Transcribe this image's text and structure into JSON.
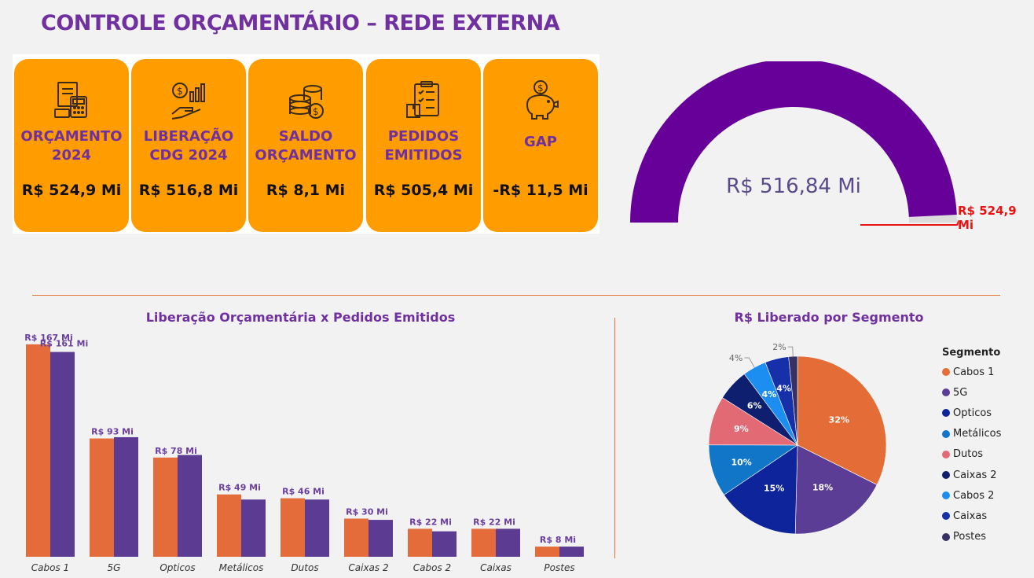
{
  "title": "CONTROLE ORÇAMENTÁRIO – REDE EXTERNA",
  "kpis": [
    {
      "label": "ORÇAMENTO\n2024",
      "value": "R$ 524,9 Mi",
      "icon": "budget-document-icon"
    },
    {
      "label": "LIBERAÇÃO\nCDG 2024",
      "value": "R$ 516,8 Mi",
      "icon": "money-hand-chart-icon"
    },
    {
      "label": "SALDO\nORÇAMENTO",
      "value": "R$ 8,1 Mi",
      "icon": "coin-stack-icon"
    },
    {
      "label": "PEDIDOS\nEMITIDOS",
      "value": "R$ 505,4 Mi",
      "icon": "clipboard-checklist-icon"
    },
    {
      "label": "GAP",
      "value": "-R$ 11,5 Mi",
      "icon": "piggy-bank-icon"
    }
  ],
  "gauge": {
    "value_label": "R$ 516,84 Mi",
    "target_label": "R$ 524,9 Mi",
    "value": 516.84,
    "target": 524.9,
    "fill_color": "#660099",
    "target_color": "#e81414"
  },
  "chart_data": [
    {
      "type": "bar",
      "title": "Liberação Orçamentária x Pedidos Emitidos",
      "categories": [
        "Cabos 1",
        "5G",
        "Opticos",
        "Metálicos",
        "Dutos",
        "Caixas 2",
        "Cabos 2",
        "Caixas",
        "Postes"
      ],
      "series": [
        {
          "values": [
            167,
            93,
            78,
            49,
            46,
            30,
            22,
            22,
            8
          ],
          "color": "#e46c3a"
        },
        {
          "values": [
            161,
            94,
            80,
            45,
            45,
            29,
            20,
            22,
            8
          ],
          "color": "#5c3b93"
        }
      ],
      "data_labels": [
        "R$ 167 Mi",
        "R$ 93 Mi",
        "R$ 78 Mi",
        "R$ 49 Mi",
        "R$ 46 Mi",
        "R$ 30 Mi",
        "R$ 22 Mi",
        "R$ 22 Mi",
        "R$ 8 Mi"
      ],
      "extra_label": "R$ 161 Mi",
      "ylim": [
        0,
        170
      ],
      "xlabel": "",
      "ylabel": ""
    },
    {
      "type": "pie",
      "title": "R$ Liberado por Segmento",
      "legend_title": "Segmento",
      "legend_position": "right",
      "slices": [
        {
          "label": "Cabos 1",
          "value": 32.3,
          "pct_label": "32%",
          "color": "#e36c37"
        },
        {
          "label": "5G",
          "value": 18.0,
          "pct_label": "18%",
          "color": "#5b3d95"
        },
        {
          "label": "Opticos",
          "value": 15.1,
          "pct_label": "15%",
          "color": "#0e249a"
        },
        {
          "label": "Metálicos",
          "value": 9.5,
          "pct_label": "10%",
          "color": "#1175c8"
        },
        {
          "label": "Dutos",
          "value": 8.9,
          "pct_label": "9%",
          "color": "#e26a74"
        },
        {
          "label": "Caixas 2",
          "value": 5.8,
          "pct_label": "6%",
          "color": "#0d1f6e"
        },
        {
          "label": "Cabos 2",
          "value": 4.3,
          "pct_label": "4%",
          "color": "#1c8ef2"
        },
        {
          "label": "Caixas",
          "value": 4.3,
          "pct_label": "4%",
          "color": "#1530a8"
        },
        {
          "label": "Postes",
          "value": 1.6,
          "pct_label": "2%",
          "color": "#363064"
        }
      ]
    }
  ]
}
